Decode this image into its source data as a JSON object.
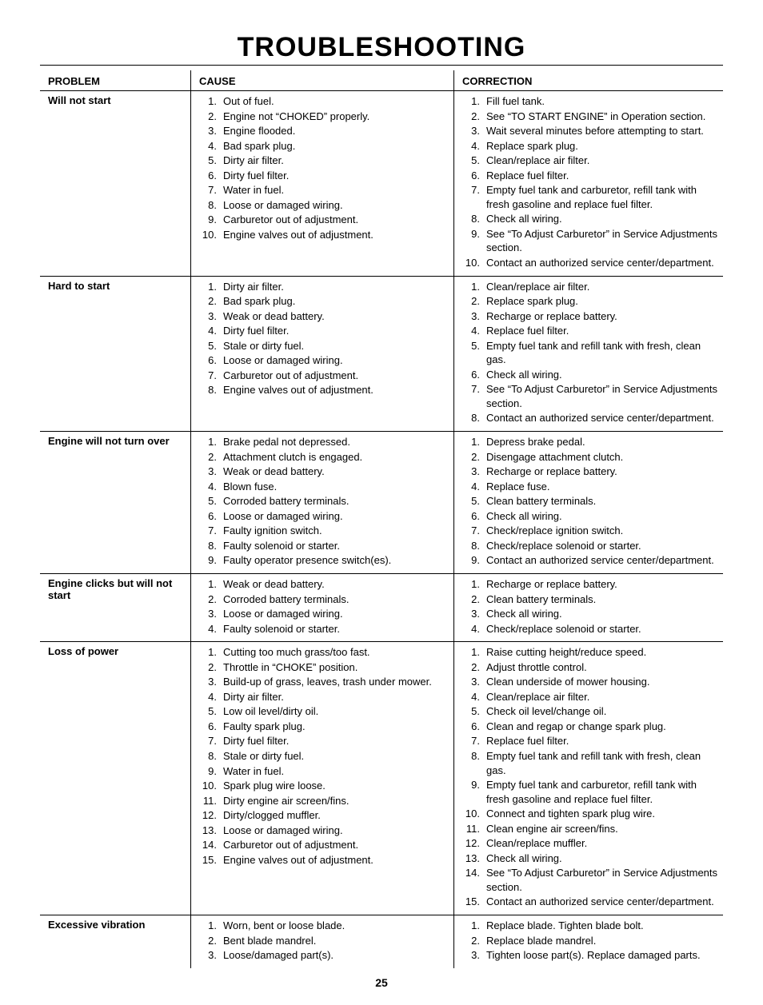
{
  "title": "TROUBLESHOOTING",
  "page_number": "25",
  "headers": {
    "problem": "PROBLEM",
    "cause": "CAUSE",
    "correction": "CORRECTION"
  },
  "rows": [
    {
      "problem": "Will not start",
      "causes": [
        "Out of fuel.",
        "Engine not “CHOKED” properly.",
        "Engine flooded.",
        "Bad spark plug.",
        "Dirty air filter.",
        "Dirty fuel filter.",
        "Water in fuel.",
        "Loose or damaged wiring.",
        "Carburetor out of adjustment.",
        "Engine valves out of adjustment."
      ],
      "corrections": [
        "Fill fuel tank.",
        "See “TO START ENGINE” in Operation section.",
        "Wait several minutes before attempting to start.",
        "Replace spark plug.",
        "Clean/replace air filter.",
        "Replace fuel filter.",
        "Empty fuel tank and carburetor, refill tank with fresh gasoline and replace fuel filter.",
        "Check all wiring.",
        "See “To Adjust Carburetor” in Service Adjustments section.",
        "Contact an authorized service center/department."
      ]
    },
    {
      "problem": "Hard to start",
      "causes": [
        "Dirty air filter.",
        "Bad spark plug.",
        "Weak or dead battery.",
        "Dirty fuel filter.",
        "Stale or dirty fuel.",
        "Loose or damaged wiring.",
        "Carburetor out of adjustment.",
        "Engine valves out of adjustment."
      ],
      "corrections": [
        "Clean/replace air filter.",
        "Replace spark plug.",
        "Recharge or replace battery.",
        "Replace fuel filter.",
        "Empty fuel tank and refill tank with fresh, clean gas.",
        "Check all wiring.",
        "See “To Adjust Carburetor” in Service Adjustments section.",
        "Contact an authorized service center/department."
      ]
    },
    {
      "problem": "Engine will not turn over",
      "causes": [
        "Brake pedal not depressed.",
        "Attachment clutch is engaged.",
        "Weak or dead battery.",
        "Blown fuse.",
        "Corroded battery terminals.",
        "Loose or damaged wiring.",
        "Faulty ignition switch.",
        "Faulty solenoid or starter.",
        "Faulty operator presence switch(es)."
      ],
      "corrections": [
        "Depress brake pedal.",
        "Disengage attachment clutch.",
        "Recharge or replace battery.",
        "Replace fuse.",
        "Clean battery terminals.",
        "Check all wiring.",
        "Check/replace ignition switch.",
        "Check/replace solenoid or starter.",
        "Contact an authorized service center/department."
      ]
    },
    {
      "problem": "Engine clicks but will not start",
      "causes": [
        "Weak or dead battery.",
        "Corroded battery terminals.",
        "Loose or damaged wiring.",
        "Faulty solenoid or starter."
      ],
      "corrections": [
        "Recharge or replace battery.",
        "Clean battery terminals.",
        "Check all wiring.",
        "Check/replace solenoid or starter."
      ]
    },
    {
      "problem": "Loss of power",
      "causes": [
        "Cutting too much grass/too fast.",
        "Throttle in “CHOKE” position.",
        "Build-up of grass, leaves, trash under mower.",
        "Dirty air filter.",
        "Low oil level/dirty oil.",
        "Faulty spark plug.",
        "Dirty fuel filter.",
        "Stale or dirty fuel.",
        "Water in fuel.",
        "Spark plug wire loose.",
        "Dirty engine air screen/fins.",
        "Dirty/clogged muffler.",
        "Loose or damaged wiring.",
        "Carburetor out of adjustment.",
        "Engine valves out of adjustment."
      ],
      "corrections": [
        "Raise cutting height/reduce speed.",
        "Adjust throttle control.",
        "Clean underside of mower housing.",
        "Clean/replace air filter.",
        "Check oil level/change oil.",
        "Clean and regap or change spark plug.",
        "Replace fuel filter.",
        "Empty fuel tank and refill tank with fresh, clean gas.",
        "Empty fuel tank and carburetor, refill tank with fresh gasoline and replace fuel filter.",
        "Connect and tighten spark plug wire.",
        "Clean engine air screen/fins.",
        "Clean/replace muffler.",
        "Check all wiring.",
        "See “To Adjust Carburetor” in Service Adjustments section.",
        "Contact an authorized service center/department."
      ]
    },
    {
      "problem": "Excessive vibration",
      "causes": [
        "Worn, bent or loose blade.",
        "Bent blade mandrel.",
        "Loose/damaged part(s)."
      ],
      "corrections": [
        "Replace blade. Tighten blade bolt.",
        "Replace blade mandrel.",
        "Tighten loose part(s).  Replace damaged parts."
      ]
    }
  ]
}
